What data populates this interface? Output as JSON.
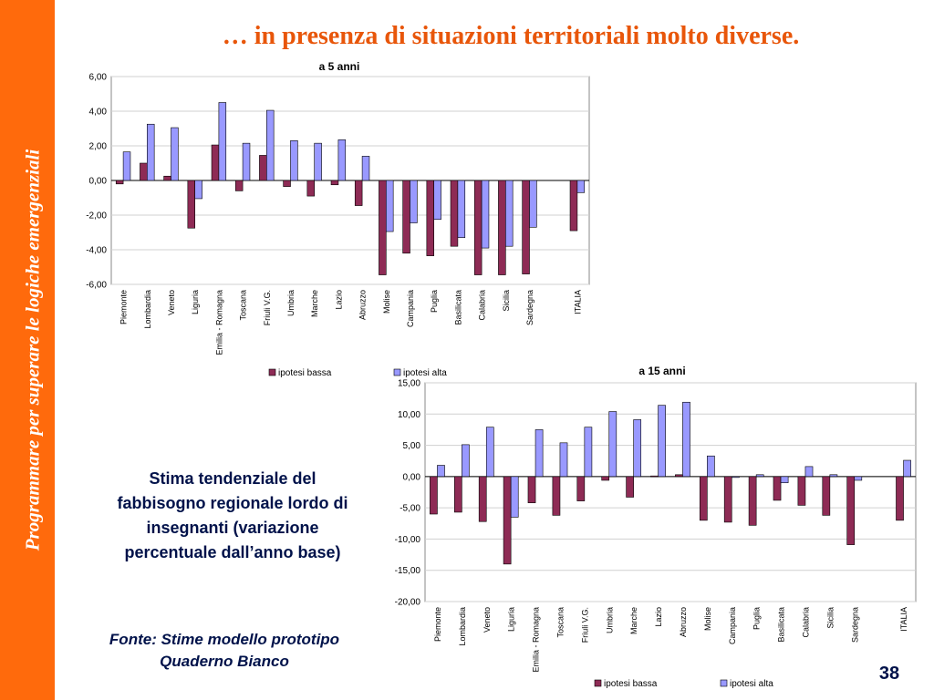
{
  "sidebar": {
    "text": "Programmare per superare le logiche emergenziali"
  },
  "slide": {
    "title": "… in presenza di situazioni territoriali molto diverse.",
    "caption": [
      "Stima tendenziale del",
      "fabbisogno regionale lordo di",
      "insegnanti (variazione",
      "percentuale dall’anno base)"
    ],
    "source": [
      "Fonte: Stime modello prototipo",
      "Quaderno Bianco"
    ],
    "page_number": "38"
  },
  "colors": {
    "sidebar": "#ff6a0c",
    "title": "#e8560a",
    "body_text": "#00124a",
    "series_bassa": "#8e2b55",
    "series_alta": "#9999ff"
  },
  "chart_data": [
    {
      "type": "bar",
      "title": "a 5 anni",
      "categories": [
        "Piemonte",
        "Lombardia",
        "Veneto",
        "Liguria",
        "Emilia - Romagna",
        "Toscana",
        "Friuli V.G.",
        "Umbria",
        "Marche",
        "Lazio",
        "Abruzzo",
        "Molise",
        "Campania",
        "Puglia",
        "Basilicata",
        "Calabria",
        "Sicilia",
        "Sardegna",
        "",
        "ITALIA"
      ],
      "series": [
        {
          "name": "ipotesi bassa",
          "values": [
            -0.2,
            1.0,
            0.25,
            -2.75,
            2.05,
            -0.6,
            1.45,
            -0.35,
            -0.9,
            -0.25,
            -1.45,
            -5.45,
            -4.2,
            -4.35,
            -3.8,
            -5.45,
            -5.45,
            -5.4,
            null,
            -2.9
          ]
        },
        {
          "name": "ipotesi alta",
          "values": [
            1.65,
            3.25,
            3.05,
            -1.05,
            4.5,
            2.15,
            4.05,
            2.3,
            2.15,
            2.35,
            1.4,
            -2.95,
            -2.45,
            -2.25,
            -3.3,
            -3.9,
            -3.8,
            -2.7,
            null,
            -0.7
          ]
        }
      ],
      "ylim": [
        -6,
        6
      ],
      "yticks": [
        -6,
        -4,
        -2,
        0,
        2,
        4,
        6
      ],
      "ytick_labels": [
        "-6,00",
        "-4,00",
        "-2,00",
        "0,00",
        "2,00",
        "4,00",
        "6,00"
      ],
      "xlabel": "",
      "ylabel": "",
      "grid": true,
      "legend_position": "bottom"
    },
    {
      "type": "bar",
      "title": "a 15 anni",
      "categories": [
        "Piemonte",
        "Lombardia",
        "Veneto",
        "Liguria",
        "Emilia - Romagna",
        "Toscana",
        "Friuli V.G.",
        "Umbria",
        "Marche",
        "Lazio",
        "Abruzzo",
        "Molise",
        "Campania",
        "Puglia",
        "Basilicata",
        "Calabria",
        "Sicilia",
        "Sardegna",
        "",
        "ITALIA"
      ],
      "series": [
        {
          "name": "ipotesi bassa",
          "values": [
            -6.0,
            -5.7,
            -7.2,
            -14.0,
            -4.2,
            -6.2,
            -3.9,
            -0.6,
            -3.3,
            0.1,
            0.3,
            -7.0,
            -7.3,
            -7.8,
            -3.8,
            -4.6,
            -6.2,
            -10.9,
            null,
            -7.0
          ]
        },
        {
          "name": "ipotesi alta",
          "values": [
            1.8,
            5.1,
            7.9,
            -6.5,
            7.5,
            5.4,
            7.9,
            10.4,
            9.1,
            11.4,
            11.9,
            3.3,
            0.0,
            0.3,
            -1.0,
            1.6,
            0.3,
            -0.6,
            null,
            2.6
          ]
        }
      ],
      "ylim": [
        -20,
        15
      ],
      "yticks": [
        -20,
        -15,
        -10,
        -5,
        0,
        5,
        10,
        15
      ],
      "ytick_labels": [
        "-20,00",
        "-15,00",
        "-10,00",
        "-5,00",
        "0,00",
        "5,00",
        "10,00",
        "15,00"
      ],
      "xlabel": "",
      "ylabel": "",
      "grid": true,
      "legend_position": "bottom"
    }
  ]
}
